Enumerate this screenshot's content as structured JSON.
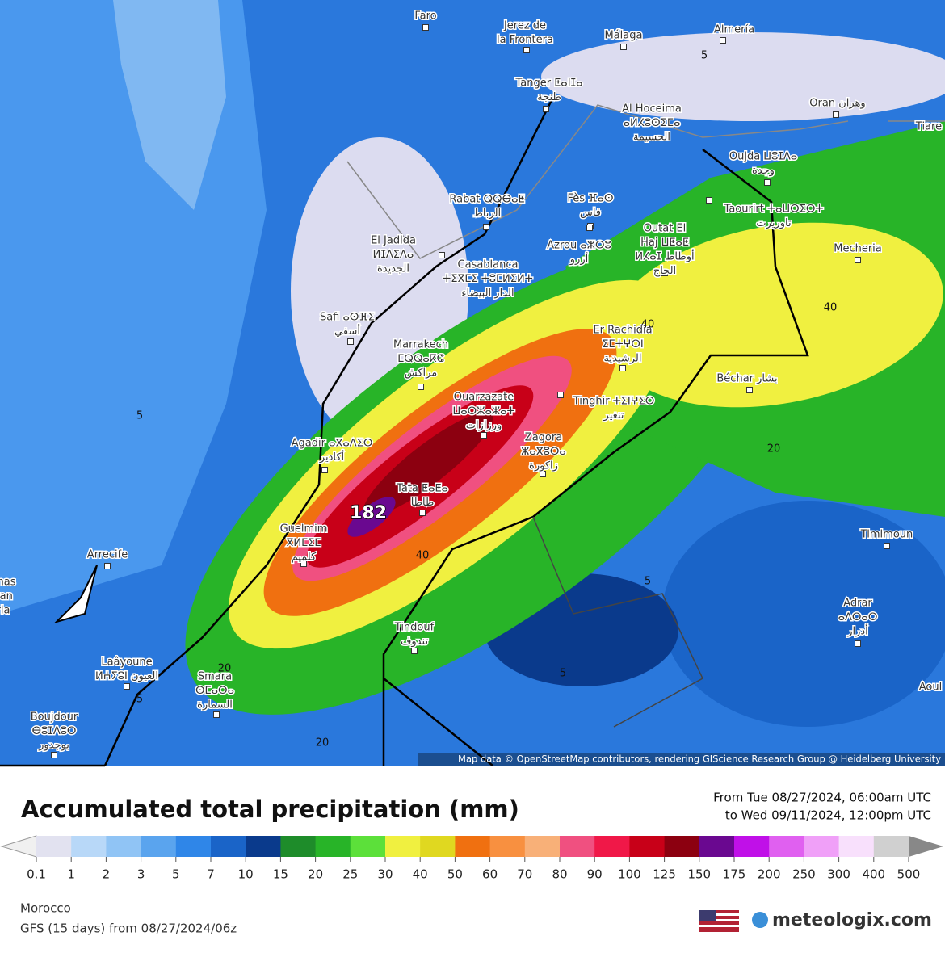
{
  "header": {
    "title": "Accumulated total precipitation (mm)",
    "period_from": "From Tue 08/27/2024, 06:00am UTC",
    "period_to": "to Wed 09/11/2024, 12:00pm UTC"
  },
  "map": {
    "attribution": "Map data © OpenStreetMap contributors, rendering GIScience Research Group @ Heidelberg University",
    "max_label": 182,
    "contour_labels": [
      5,
      5,
      5,
      5,
      5,
      20,
      20,
      20,
      40,
      40,
      40
    ],
    "cities": [
      {
        "lines": [
          "Faro"
        ]
      },
      {
        "lines": [
          "Jerez de",
          "la Frontera"
        ]
      },
      {
        "lines": [
          "Málaga"
        ]
      },
      {
        "lines": [
          "Almería"
        ]
      },
      {
        "lines": [
          "Tanger ⵟⴰⵏⵊⴰ",
          "طنجة"
        ]
      },
      {
        "lines": [
          "Al Hoceima",
          "ⴰⵍⵃⵓⵙⵉⵎⴰ",
          "الحسيمة"
        ]
      },
      {
        "lines": [
          "Oran وهران"
        ]
      },
      {
        "lines": [
          "Tiare"
        ]
      },
      {
        "lines": [
          "Oujda ⵡⵓⵊⴷⴰ",
          "وجدة"
        ]
      },
      {
        "lines": [
          "Rabat ⵕⵕⴱⴰⵟ",
          "الرباط"
        ]
      },
      {
        "lines": [
          "Fès ⴼⴰⵙ",
          "فاس"
        ]
      },
      {
        "lines": [
          "Taourirt ⵜⴰⵡⵔⵉⵔⵜ",
          "تاوريرت"
        ]
      },
      {
        "lines": [
          "Outat El",
          "Haj ⵡⵟⴰⵟ",
          "ⵍⵃⴰⵊ أوطاط",
          "الحاج"
        ]
      },
      {
        "lines": [
          "Azrou ⴰⵣⵔⵓ",
          "أزرو"
        ]
      },
      {
        "lines": [
          "El Jadida",
          "ⵍⵊⴷⵉⴷⴰ",
          "الجديدة"
        ]
      },
      {
        "lines": [
          "Casablanca",
          "ⵜⵉⴳⵎⵉ ⵜⵓⵎⵍⵉⵍⵜ",
          "الدار البيضاء"
        ]
      },
      {
        "lines": [
          "Mecheria"
        ]
      },
      {
        "lines": [
          "Safi ⴰⵙⴼⵉ",
          "أسفي"
        ]
      },
      {
        "lines": [
          "Marrakech",
          "ⵎⵕⵕⴰⴽⵛ",
          "مراكش"
        ]
      },
      {
        "lines": [
          "Er Rachidia",
          "ⵉⵎⵜⵖⵔⵏ",
          "الرشيدية"
        ]
      },
      {
        "lines": [
          "Béchar بشار"
        ]
      },
      {
        "lines": [
          "Ouarzazate",
          "ⵡⴰⵔⵣⴰⵣⴰⵜ",
          "ورزازات"
        ]
      },
      {
        "lines": [
          "Tinghir ⵜⵉⵏⵖⵉⵔ",
          "تنغير"
        ]
      },
      {
        "lines": [
          "Agadir ⴰⴳⴰⴷⵉⵔ",
          "أكادير"
        ]
      },
      {
        "lines": [
          "Zagora",
          "ⵣⴰⴳⵓⵔⴰ",
          "زاكورة"
        ]
      },
      {
        "lines": [
          "Tata ⵟⴰⵟⴰ",
          "طاطا"
        ]
      },
      {
        "lines": [
          "Guelmim",
          "ⴳⵍⵎⵉⵎ",
          "كلميم"
        ]
      },
      {
        "lines": [
          "Arrecife"
        ]
      },
      {
        "lines": [
          "Timimoun"
        ]
      },
      {
        "lines": [
          "Tindouf",
          "تندوف"
        ]
      },
      {
        "lines": [
          "Adrar",
          "ⴰⴷⵔⴰⵔ",
          "أدرار"
        ]
      },
      {
        "lines": [
          "Laâyoune",
          "ⵍⵄⵢⵓⵏ العيون"
        ]
      },
      {
        "lines": [
          "Smara",
          "ⵙⵎⴰⵔⴰ",
          "السمارة"
        ]
      },
      {
        "lines": [
          "Boujdour",
          "ⴱⵓⵊⴷⵓⵔ",
          "بوجدور"
        ]
      },
      {
        "lines": [
          "Aoul"
        ]
      },
      {
        "lines": [
          "almas",
          "Gran",
          "aria"
        ]
      }
    ]
  },
  "legend": {
    "ticks": [
      0.1,
      1,
      2,
      3,
      5,
      7,
      10,
      15,
      20,
      25,
      30,
      40,
      50,
      60,
      70,
      80,
      90,
      100,
      125,
      150,
      175,
      200,
      250,
      300,
      400,
      500
    ],
    "colors": [
      "#e2e2f0",
      "#b8d8f8",
      "#90c4f5",
      "#5aa4ee",
      "#2f86e8",
      "#1a64c8",
      "#0a3a8c",
      "#1e8c2a",
      "#28b428",
      "#5ce03a",
      "#f0f040",
      "#e0d820",
      "#f07010",
      "#f89040",
      "#f8b078",
      "#f05080",
      "#f01848",
      "#c80018",
      "#8c0010",
      "#6a0890",
      "#c010e8",
      "#e060f0",
      "#f0a0f8",
      "#f8e0fc",
      "#d0d0d0"
    ],
    "under_color": "#f0f0f0",
    "over_color": "#888888"
  },
  "footer": {
    "region": "Morocco",
    "model": "GFS (15 days) from  08/27/2024/06z",
    "brand": "meteologix.com"
  }
}
